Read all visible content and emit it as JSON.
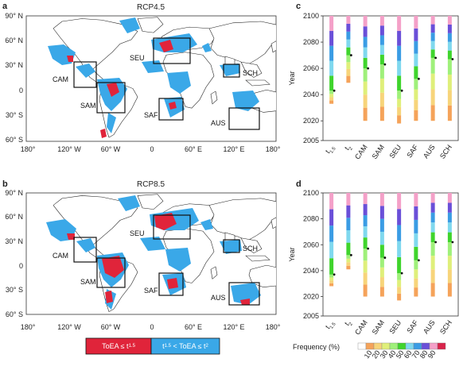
{
  "panels": {
    "a": {
      "letter": "a",
      "title": "RCP4.5"
    },
    "b": {
      "letter": "b",
      "title": "RCP8.5"
    },
    "c": {
      "letter": "c"
    },
    "d": {
      "letter": "d"
    }
  },
  "map": {
    "lon_ticks": [
      "180°",
      "120° W",
      "60° W",
      "0",
      "60° E",
      "120° E",
      "180°"
    ],
    "lat_ticks": [
      "90° N",
      "60° N",
      "30° N",
      "0",
      "30° S",
      "60° S"
    ],
    "regions": [
      "CAM",
      "SAM",
      "SEU",
      "SAF",
      "AUS",
      "SCH"
    ],
    "legend": {
      "left": "ToEA ≤ t",
      "left_sub": "1.5",
      "right_a": "t",
      "right_a_sub": "1.5",
      "right_b": " < ToEA ≤ t",
      "right_b_sub": "2",
      "left_color": "#e0243a",
      "right_color": "#3aa8e8"
    }
  },
  "chart_data": [
    {
      "panel": "c",
      "type": "bar",
      "ylabel": "Year",
      "ylim": [
        2005,
        2100
      ],
      "yticks": [
        "2100",
        "2080",
        "2060",
        "2040",
        "2020",
        "2005"
      ],
      "categories": [
        "t1.5",
        "t2",
        "CAM",
        "SAM",
        "SEU",
        "SAF",
        "AUS",
        "SCH"
      ],
      "category_labels": [
        {
          "main": "t",
          "sub": "1.5"
        },
        {
          "main": "t",
          "sub": "2"
        },
        {
          "main": "CAM"
        },
        {
          "main": "SAM"
        },
        {
          "main": "SEU"
        },
        {
          "main": "SAF"
        },
        {
          "main": "AUS"
        },
        {
          "main": "SCH"
        }
      ],
      "start_years": [
        2033,
        2049,
        2020,
        2020,
        2018,
        2020,
        2020,
        2020
      ],
      "medians": [
        2043,
        2070,
        2060,
        2063,
        2043,
        2052,
        2068,
        2067
      ]
    },
    {
      "panel": "d",
      "type": "bar",
      "ylabel": "Year",
      "ylim": [
        2005,
        2100
      ],
      "yticks": [
        "2100",
        "2080",
        "2060",
        "2040",
        "2020",
        "2005"
      ],
      "categories": [
        "t1.5",
        "t2",
        "CAM",
        "SAM",
        "SEU",
        "SAF",
        "AUS",
        "SCH"
      ],
      "category_labels": [
        {
          "main": "t",
          "sub": "1.5"
        },
        {
          "main": "t",
          "sub": "2"
        },
        {
          "main": "CAM"
        },
        {
          "main": "SAM"
        },
        {
          "main": "SEU"
        },
        {
          "main": "SAF"
        },
        {
          "main": "AUS"
        },
        {
          "main": "SCH"
        }
      ],
      "start_years": [
        2028,
        2041,
        2020,
        2020,
        2017,
        2020,
        2020,
        2020
      ],
      "medians": [
        2037,
        2052,
        2057,
        2050,
        2038,
        2048,
        2062,
        2062
      ]
    }
  ],
  "frequency_legend": {
    "title": "Frequency (%)",
    "ticks": [
      "10",
      "20",
      "30",
      "40",
      "50",
      "60",
      "70",
      "80",
      "90"
    ],
    "colors": [
      "#ffffff",
      "#f5a35a",
      "#f7d47a",
      "#dfef7a",
      "#9ff07a",
      "#3fd42c",
      "#7fd8ee",
      "#3a9ce4",
      "#6a4fd8",
      "#f4a0c8",
      "#d8234a"
    ]
  }
}
